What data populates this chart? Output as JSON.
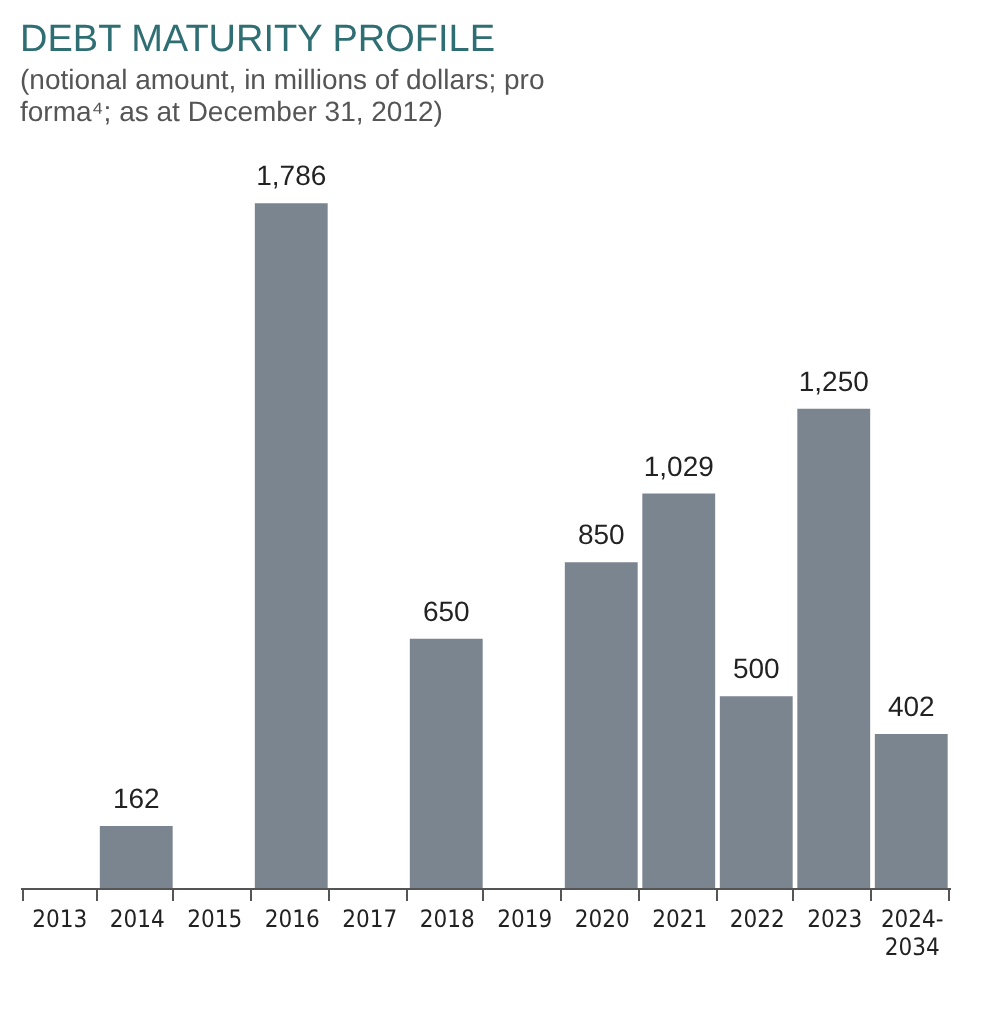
{
  "chart_data": {
    "type": "bar",
    "title": "DEBT MATURITY PROFILE",
    "subtitle": "(notional amount, in millions of dollars; pro forma⁴; as at December 31, 2012)",
    "categories": [
      "2013",
      "2014",
      "2015",
      "2016",
      "2017",
      "2018",
      "2019",
      "2020",
      "2021",
      "2022",
      "2023",
      "2024-2034"
    ],
    "values": [
      null,
      162,
      null,
      1786,
      null,
      650,
      null,
      850,
      1029,
      500,
      1250,
      402
    ],
    "value_labels": [
      null,
      "162",
      null,
      "1,786",
      null,
      "650",
      null,
      "850",
      "1,029",
      "500",
      "1,250",
      "402"
    ],
    "color": "#7b8590",
    "tick_labels": "x"
  }
}
